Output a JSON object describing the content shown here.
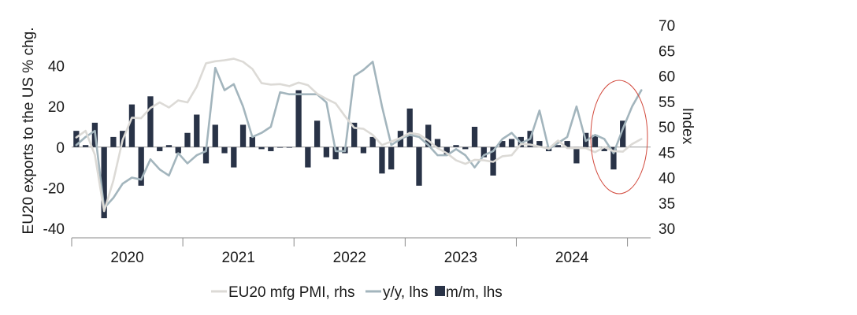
{
  "chart_data": {
    "type": "bar+line",
    "title": "",
    "ylabel_left": "EU20 exports to the US % chg.",
    "ylabel_right": "Index",
    "ylim_left": [
      -40,
      60
    ],
    "yticks_left": [
      "40",
      "20",
      "0",
      "-20",
      "-40"
    ],
    "ylim_right": [
      30,
      70
    ],
    "yticks_right": [
      "70",
      "65",
      "60",
      "55",
      "50",
      "45",
      "40",
      "35",
      "30"
    ],
    "x_year_labels": [
      "2020",
      "2021",
      "2022",
      "2023",
      "2024"
    ],
    "x_start": "2020-01",
    "months": [
      "2020-01",
      "2020-02",
      "2020-03",
      "2020-04",
      "2020-05",
      "2020-06",
      "2020-07",
      "2020-08",
      "2020-09",
      "2020-10",
      "2020-11",
      "2020-12",
      "2021-01",
      "2021-02",
      "2021-03",
      "2021-04",
      "2021-05",
      "2021-06",
      "2021-07",
      "2021-08",
      "2021-09",
      "2021-10",
      "2021-11",
      "2021-12",
      "2022-01",
      "2022-02",
      "2022-03",
      "2022-04",
      "2022-05",
      "2022-06",
      "2022-07",
      "2022-08",
      "2022-09",
      "2022-10",
      "2022-11",
      "2022-12",
      "2023-01",
      "2023-02",
      "2023-03",
      "2023-04",
      "2023-05",
      "2023-06",
      "2023-07",
      "2023-08",
      "2023-09",
      "2023-10",
      "2023-11",
      "2023-12",
      "2024-01",
      "2024-02",
      "2024-03",
      "2024-04",
      "2024-05",
      "2024-06",
      "2024-07",
      "2024-08",
      "2024-09",
      "2024-10",
      "2024-11",
      "2024-12",
      "2025-01",
      "2025-02"
    ],
    "legend": [
      {
        "label": "EU20 mfg PMI, rhs",
        "color": "#dcdad6",
        "kind": "line"
      },
      {
        "label": "y/y, lhs",
        "color": "#a3b5bd",
        "kind": "line"
      },
      {
        "label": "m/m, lhs",
        "color": "#293347",
        "kind": "bar"
      }
    ],
    "series": [
      {
        "name": "m/m, lhs",
        "kind": "bar",
        "axis": "left",
        "color": "#293347",
        "values": [
          8,
          1,
          12,
          -35,
          5,
          8,
          21,
          -19,
          25,
          -2,
          1,
          -3,
          7,
          16,
          -8,
          11,
          -3,
          -10,
          11,
          5,
          -1,
          -2,
          0,
          0,
          28,
          -10,
          13,
          -5,
          -6,
          -3,
          12,
          -3,
          5,
          -13,
          -11,
          8,
          19,
          -19,
          11,
          4,
          -4,
          1,
          -1,
          10,
          -5,
          -14,
          3,
          4,
          5,
          8,
          3,
          -2,
          1,
          3,
          -8,
          7,
          6,
          -2,
          -11,
          13,
          null,
          null
        ]
      },
      {
        "name": "y/y, lhs",
        "kind": "line",
        "axis": "left",
        "color": "#a3b5bd",
        "values": [
          1,
          5,
          8,
          -30,
          -25,
          -18,
          -15,
          -16,
          -6,
          -11,
          -14,
          -3,
          -8,
          -4,
          -2,
          39,
          28,
          31,
          20,
          5,
          7,
          10,
          27,
          26,
          26,
          26,
          26,
          22,
          -2,
          -2,
          35,
          38,
          42,
          20,
          1,
          4,
          6,
          5,
          1,
          -4,
          -4,
          -1,
          -4,
          -10,
          -4,
          -2,
          4,
          7,
          2,
          4,
          18,
          -1,
          2,
          5,
          20,
          3,
          6,
          4,
          -3,
          9,
          20,
          28
        ]
      },
      {
        "name": "EU20 mfg PMI, rhs",
        "kind": "line",
        "axis": "right",
        "color": "#dcdad6",
        "values": [
          47.9,
          49.2,
          44.5,
          33.4,
          39.4,
          47.4,
          51.8,
          51.7,
          53.7,
          54.8,
          53.8,
          55.2,
          54.8,
          57.9,
          62.5,
          62.9,
          63.1,
          63.4,
          62.8,
          61.4,
          58.6,
          58.3,
          58.4,
          58.0,
          58.7,
          58.2,
          56.5,
          55.5,
          54.6,
          52.1,
          49.8,
          49.6,
          48.4,
          46.4,
          47.1,
          47.8,
          48.8,
          48.5,
          47.3,
          45.8,
          44.8,
          43.4,
          42.7,
          43.5,
          43.4,
          43.1,
          44.2,
          44.4,
          46.6,
          46.5,
          46.1,
          45.7,
          47.3,
          45.8,
          45.8,
          45.8,
          45.0,
          46.0,
          45.2,
          45.1,
          46.6,
          47.6
        ]
      }
    ]
  }
}
